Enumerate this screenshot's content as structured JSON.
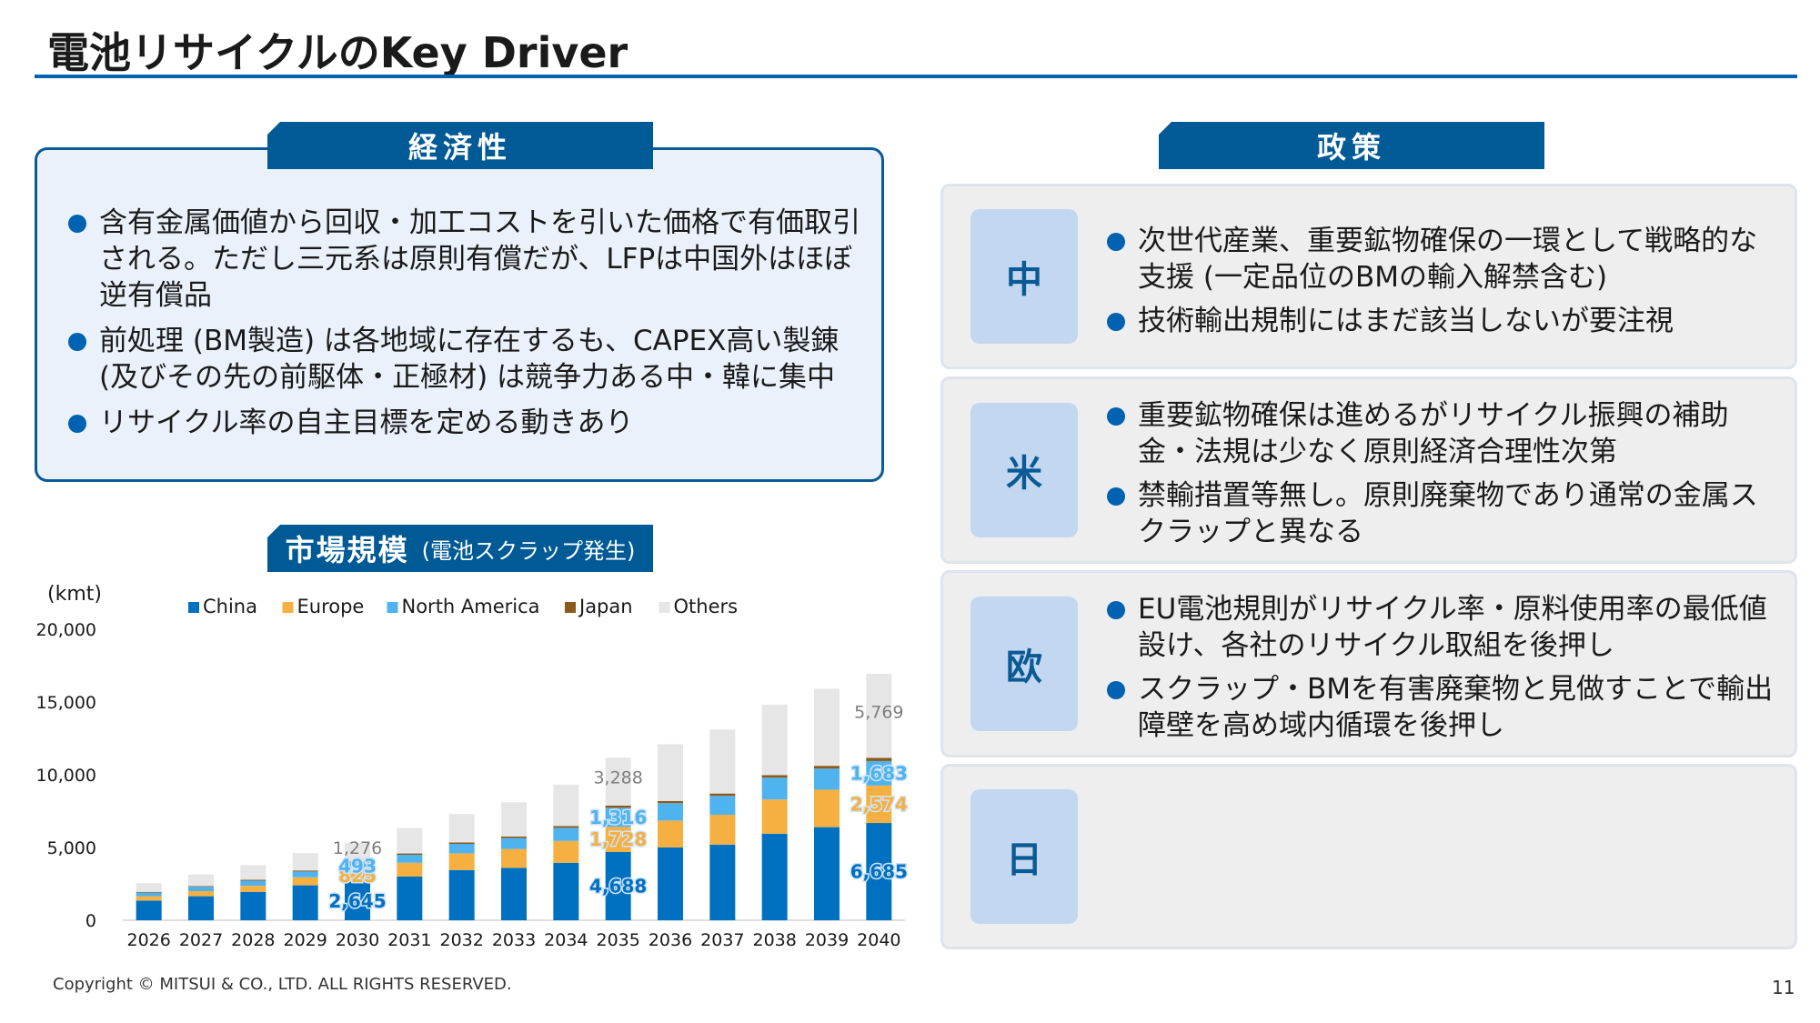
{
  "page": {
    "title": "電池リサイクルのKey Driver",
    "copyright": "Copyright © MITSUI & CO., LTD. ALL RIGHTS RESERVED.",
    "page_number": "11"
  },
  "economics": {
    "tab_label": "経済性",
    "bullets": [
      "含有金属価値から回収・加工コストを引いた価格で有価取引される。ただし三元系は原則有償だが、LFPは中国外はほぼ逆有償品",
      "前処理 (BM製造) は各地域に存在するも、CAPEX高い製錬 (及びその先の前駆体・正極材) は競争力ある中・韓に集中",
      "リサイクル率の自主目標を定める動きあり"
    ]
  },
  "policy": {
    "tab_label": "政策",
    "regions": [
      {
        "label": "中",
        "bullets": [
          "次世代産業、重要鉱物確保の一環として戦略的な支援 (一定品位のBMの輸入解禁含む)",
          "技術輸出規制にはまだ該当しないが要注視"
        ]
      },
      {
        "label": "米",
        "bullets": [
          "重要鉱物確保は進めるがリサイクル振興の補助金・法規は少なく原則経済合理性次第",
          "禁輸措置等無し。原則廃棄物であり通常の金属スクラップと異なる"
        ]
      },
      {
        "label": "欧",
        "bullets": [
          "EU電池規則がリサイクル率・原料使用率の最低値設け、各社のリサイクル取組を後押し",
          "スクラップ・BMを有害廃棄物と見做すことで輸出障壁を高め域内循環を後押し"
        ]
      },
      {
        "label": "日",
        "bullets": []
      }
    ]
  },
  "market": {
    "tab_label": "市場規模",
    "tab_sub": "(電池スクラップ発生)"
  },
  "chart_data": {
    "type": "bar",
    "stacked": true,
    "ylabel": "(kmt)",
    "ylim": [
      0,
      20000
    ],
    "yticks": [
      "0",
      "5,000",
      "10,000",
      "15,000",
      "20,000"
    ],
    "legend_position": "top",
    "grid": false,
    "categories": [
      "2026",
      "2027",
      "2028",
      "2029",
      "2030",
      "2031",
      "2032",
      "2033",
      "2034",
      "2035",
      "2036",
      "2037",
      "2038",
      "2039",
      "2040"
    ],
    "series": [
      {
        "name": "China",
        "color": "#0070c0",
        "values": [
          1350,
          1650,
          1950,
          2400,
          2645,
          3000,
          3450,
          3600,
          3950,
          4688,
          5000,
          5200,
          5950,
          6400,
          6685
        ]
      },
      {
        "name": "Europe",
        "color": "#f5b041",
        "values": [
          300,
          350,
          420,
          550,
          825,
          950,
          1150,
          1300,
          1500,
          1728,
          1850,
          2050,
          2350,
          2574,
          2574
        ]
      },
      {
        "name": "North America",
        "color": "#4fb3f0",
        "values": [
          250,
          300,
          350,
          400,
          493,
          550,
          650,
          750,
          900,
          1316,
          1200,
          1300,
          1500,
          1450,
          1683
        ]
      },
      {
        "name": "Japan",
        "color": "#8b5a1a",
        "values": [
          50,
          50,
          60,
          70,
          80,
          90,
          100,
          110,
          120,
          150,
          150,
          160,
          170,
          190,
          220
        ]
      },
      {
        "name": "Others",
        "color": "#e6e6e6",
        "values": [
          600,
          800,
          1000,
          1200,
          1276,
          1750,
          1950,
          2350,
          2850,
          3288,
          3900,
          4400,
          4850,
          5300,
          5769
        ]
      }
    ],
    "data_labels": [
      {
        "year": "2030",
        "series": "China",
        "text": "2,645"
      },
      {
        "year": "2030",
        "series": "Europe",
        "text": "825"
      },
      {
        "year": "2030",
        "series": "North America",
        "text": "493"
      },
      {
        "year": "2030",
        "series": "Others",
        "text": "1,276"
      },
      {
        "year": "2035",
        "series": "China",
        "text": "4,688"
      },
      {
        "year": "2035",
        "series": "Europe",
        "text": "1,728"
      },
      {
        "year": "2035",
        "series": "North America",
        "text": "1,316"
      },
      {
        "year": "2035",
        "series": "Others",
        "text": "3,288"
      },
      {
        "year": "2040",
        "series": "China",
        "text": "6,685"
      },
      {
        "year": "2040",
        "series": "Europe",
        "text": "2,574"
      },
      {
        "year": "2040",
        "series": "North America",
        "text": "1,683"
      },
      {
        "year": "2040",
        "series": "Others",
        "text": "5,769"
      }
    ]
  }
}
